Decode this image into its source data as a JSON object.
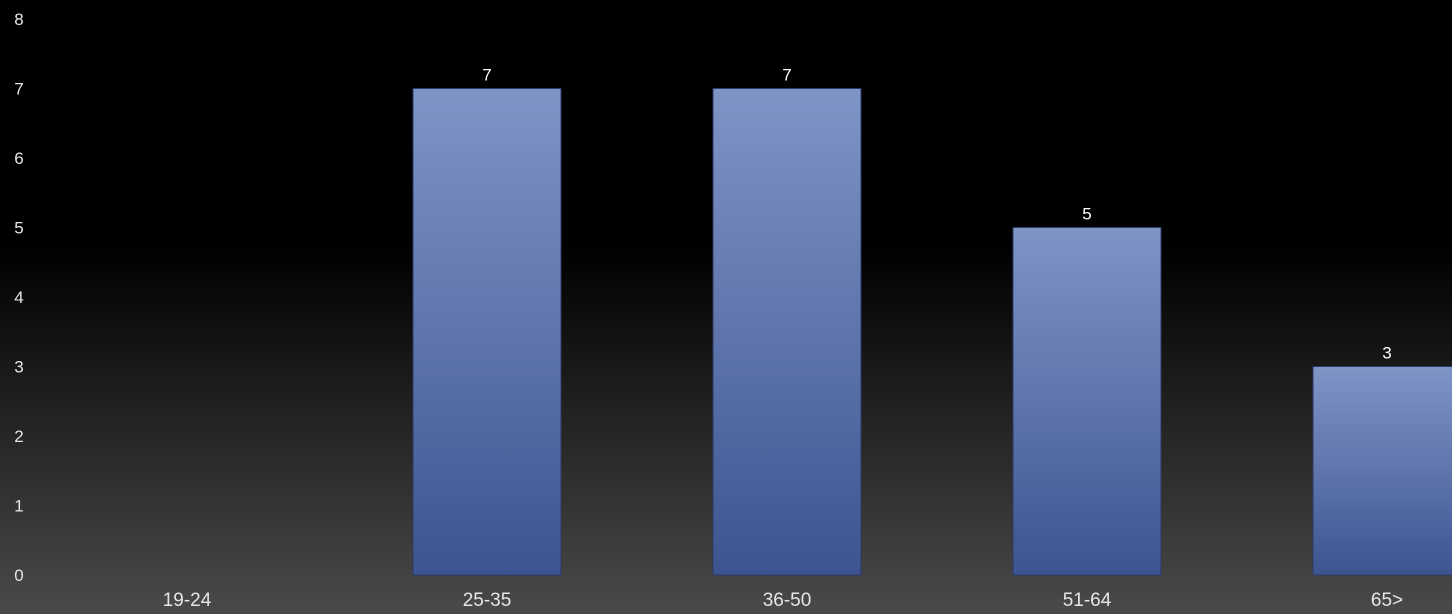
{
  "chart_data": {
    "type": "bar",
    "title": "",
    "xlabel": "",
    "ylabel": "",
    "categories": [
      "19-24",
      "25-35",
      "36-50",
      "51-64",
      "65>"
    ],
    "values": [
      0,
      7,
      7,
      5,
      3
    ],
    "data_labels": [
      "",
      "7",
      "7",
      "5",
      "3"
    ],
    "y_ticks": [
      "0",
      "1",
      "2",
      "3",
      "4",
      "5",
      "6",
      "7",
      "8"
    ],
    "ylim": [
      0,
      8
    ],
    "grid": false,
    "legend": "none",
    "colors": {
      "bar_top": "#7f95c6",
      "bar_bottom": "#3e5491",
      "background_top": "#000000",
      "background_bottom": "#4a4a4a"
    }
  }
}
